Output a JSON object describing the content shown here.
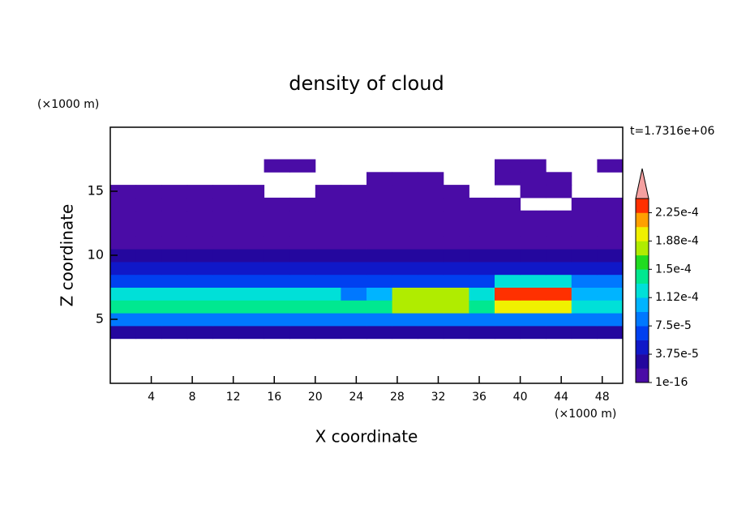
{
  "chart_data": {
    "type": "contour",
    "title": "density of cloud",
    "x_label": "X coordinate",
    "y_label": "Z coordinate",
    "x_unit": "(×1000 m)",
    "y_unit": "(×1000 m)",
    "time_label": "t=1.7316e+06",
    "xlim": [
      0,
      50
    ],
    "ylim": [
      0,
      20
    ],
    "xticks": [
      4,
      8,
      12,
      16,
      20,
      24,
      28,
      32,
      36,
      40,
      44,
      48
    ],
    "yticks": [
      5,
      10,
      15
    ],
    "x": [
      0,
      2.5,
      5,
      7.5,
      10,
      12.5,
      15,
      17.5,
      20,
      22.5,
      25,
      27.5,
      30,
      32.5,
      35,
      37.5,
      40,
      42.5,
      45,
      47.5,
      50
    ],
    "z": [
      3.5,
      4.5,
      5.5,
      6.5,
      7.5,
      8.5,
      9.5,
      10.5,
      11.5,
      12.5,
      13.5,
      14.5,
      15.5,
      16.5,
      17.5
    ],
    "values": [
      [
        3e-05,
        3e-05,
        3e-05,
        3e-05,
        3e-05,
        3e-05,
        3e-05,
        3e-05,
        3e-05,
        3e-05,
        3e-05,
        3e-05,
        3e-05,
        3e-05,
        3e-05,
        3e-05,
        3e-05,
        3e-05,
        3e-05,
        3e-05
      ],
      [
        8e-05,
        8e-05,
        8e-05,
        8e-05,
        8e-05,
        8e-05,
        8e-05,
        8e-05,
        8e-05,
        8e-05,
        8e-05,
        8e-05,
        8e-05,
        8e-05,
        8e-05,
        8e-05,
        8e-05,
        8e-05,
        8e-05,
        8e-05
      ],
      [
        0.00014,
        0.00014,
        0.00014,
        0.00014,
        0.00014,
        0.00014,
        0.00014,
        0.00014,
        0.00014,
        0.00014,
        0.00014,
        0.00017,
        0.00017,
        0.00017,
        0.00014,
        0.00019,
        0.00019,
        0.00019,
        0.00013,
        0.00013
      ],
      [
        0.00013,
        0.00013,
        0.00013,
        0.00013,
        0.00013,
        0.00013,
        0.00013,
        0.00013,
        0.00013,
        9e-05,
        0.00011,
        0.00018,
        0.00018,
        0.00018,
        0.00013,
        0.00023,
        0.00023,
        0.00023,
        0.00011,
        0.00011
      ],
      [
        7e-05,
        7e-05,
        7e-05,
        7e-05,
        7e-05,
        7e-05,
        7e-05,
        7e-05,
        7e-05,
        7e-05,
        7e-05,
        7e-05,
        7e-05,
        7e-05,
        7e-05,
        0.00012,
        0.00012,
        0.00012,
        8e-05,
        8e-05
      ],
      [
        4.5e-05,
        4.5e-05,
        4.5e-05,
        4.5e-05,
        4.5e-05,
        4.5e-05,
        4.5e-05,
        4.5e-05,
        4.5e-05,
        4.5e-05,
        4.5e-05,
        4.5e-05,
        4.5e-05,
        4.5e-05,
        4.5e-05,
        4.5e-05,
        4.5e-05,
        4.5e-05,
        4.5e-05,
        4.5e-05
      ],
      [
        2.5e-05,
        2.5e-05,
        2.5e-05,
        2.5e-05,
        2.5e-05,
        2.5e-05,
        2.5e-05,
        2.5e-05,
        2.5e-05,
        2.5e-05,
        2.5e-05,
        2.5e-05,
        2.5e-05,
        2.5e-05,
        2.5e-05,
        2.5e-05,
        2.5e-05,
        2.5e-05,
        2.5e-05,
        2.5e-05
      ],
      [
        1.5e-05,
        1.5e-05,
        1.5e-05,
        1.5e-05,
        1.5e-05,
        1.5e-05,
        1.5e-05,
        1.5e-05,
        1.5e-05,
        1.5e-05,
        1.5e-05,
        1.5e-05,
        1.5e-05,
        1.5e-05,
        1.5e-05,
        1.5e-05,
        1.5e-05,
        1.5e-05,
        1.5e-05,
        1.5e-05
      ],
      [
        8e-06,
        8e-06,
        8e-06,
        8e-06,
        8e-06,
        8e-06,
        8e-06,
        8e-06,
        8e-06,
        8e-06,
        8e-06,
        8e-06,
        8e-06,
        8e-06,
        8e-06,
        8e-06,
        8e-06,
        8e-06,
        8e-06,
        8e-06
      ],
      [
        3e-06,
        3e-06,
        3e-06,
        3e-06,
        3e-06,
        3e-06,
        3e-06,
        3e-06,
        3e-06,
        3e-06,
        3e-06,
        3e-06,
        3e-06,
        3e-06,
        3e-06,
        3e-06,
        3e-06,
        3e-06,
        3e-06,
        3e-06
      ],
      [
        1e-06,
        1e-06,
        1e-06,
        1e-06,
        1e-06,
        1e-06,
        1e-06,
        1e-06,
        1e-06,
        1e-06,
        1e-06,
        1e-06,
        1e-06,
        1e-06,
        1e-06,
        1e-06,
        null,
        null,
        1e-06,
        1e-06
      ],
      [
        1e-06,
        1e-06,
        1e-06,
        1e-06,
        1e-06,
        1e-06,
        null,
        null,
        1e-06,
        1e-06,
        1e-06,
        1e-06,
        1e-06,
        1e-06,
        null,
        null,
        1e-06,
        1e-06,
        null,
        null
      ],
      [
        null,
        null,
        null,
        null,
        null,
        null,
        null,
        null,
        null,
        null,
        1e-06,
        1e-06,
        1e-06,
        null,
        null,
        1e-06,
        1e-06,
        1e-06,
        null,
        null
      ],
      [
        null,
        null,
        null,
        null,
        null,
        null,
        1e-06,
        1e-06,
        null,
        null,
        null,
        null,
        null,
        null,
        null,
        1e-06,
        1e-06,
        null,
        null,
        1e-06
      ]
    ],
    "levels": [
      1e-16,
      1.875e-05,
      3.75e-05,
      5.625e-05,
      7.5e-05,
      9.375e-05,
      0.0001125,
      0.00013125,
      0.00015,
      0.00016875,
      0.0001875,
      0.00020625,
      0.000225,
      0.00024375
    ],
    "colors": [
      "#4a0ca6",
      "#24079e",
      "#1018c8",
      "#0040f0",
      "#0078ff",
      "#00b4ff",
      "#00e0d8",
      "#00e890",
      "#20dc20",
      "#b0ec00",
      "#f0f000",
      "#ffa000",
      "#ff3000"
    ],
    "overflow_color": "#f4a0a0",
    "colorbar_ticks": [
      {
        "value": 1e-16,
        "label": "1e-16"
      },
      {
        "value": 3.75e-05,
        "label": "3.75e-5"
      },
      {
        "value": 7.5e-05,
        "label": "7.5e-5"
      },
      {
        "value": 0.0001125,
        "label": "1.12e-4"
      },
      {
        "value": 0.00015,
        "label": "1.5e-4"
      },
      {
        "value": 0.0001875,
        "label": "1.88e-4"
      },
      {
        "value": 0.000225,
        "label": "2.25e-4"
      }
    ]
  }
}
